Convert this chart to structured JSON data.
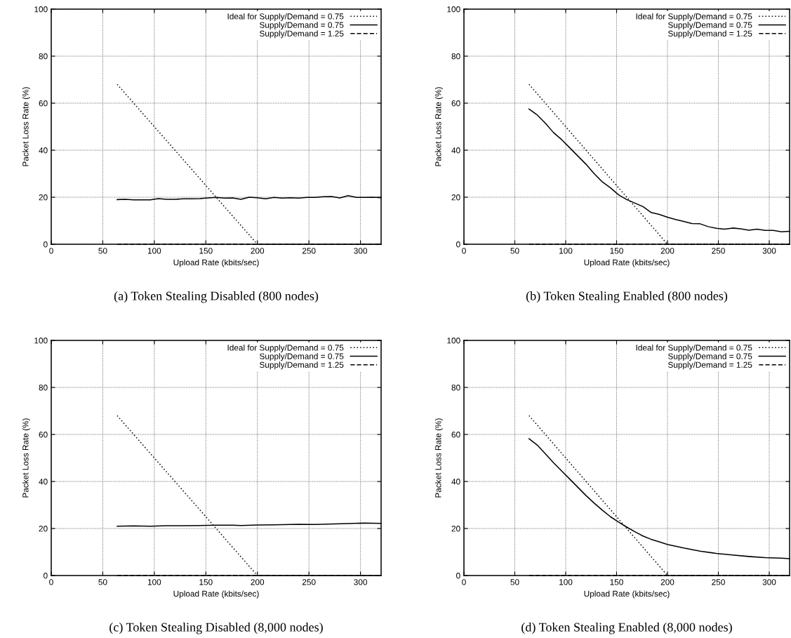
{
  "chart_data": [
    {
      "type": "line",
      "title": "(a) Token Stealing Disabled (800 nodes)",
      "xlabel": "Upload Rate (kbits/sec)",
      "ylabel": "Packet Loss Rate (%)",
      "xlim": [
        0,
        320
      ],
      "ylim": [
        0,
        100
      ],
      "xticks": [
        0,
        50,
        100,
        150,
        200,
        250,
        300
      ],
      "yticks": [
        0,
        20,
        40,
        60,
        80,
        100
      ],
      "grid": true,
      "legend": "top right",
      "series": [
        {
          "name": "Ideal for Supply/Demand = 0.75",
          "color": "#000000",
          "line_style": "dotted",
          "x": [
            64,
            200,
            320
          ],
          "values": [
            68,
            0,
            0
          ]
        },
        {
          "name": "Supply/Demand = 0.75",
          "color": "#000000",
          "line_style": "solid",
          "x": [
            64,
            72,
            80,
            88,
            96,
            104,
            112,
            120,
            128,
            136,
            144,
            152,
            160,
            168,
            176,
            184,
            192,
            200,
            208,
            216,
            224,
            232,
            240,
            248,
            256,
            264,
            272,
            280,
            288,
            296,
            304,
            312,
            320
          ],
          "values": [
            19.0,
            19.1,
            18.9,
            18.9,
            18.9,
            19.4,
            19.1,
            19.1,
            19.3,
            19.3,
            19.4,
            19.7,
            19.9,
            19.6,
            19.7,
            19.1,
            20.0,
            19.8,
            19.3,
            19.9,
            19.6,
            19.8,
            19.6,
            19.9,
            19.9,
            20.2,
            20.3,
            19.7,
            20.7,
            19.9,
            19.9,
            20.0,
            19.8
          ]
        },
        {
          "name": "Supply/Demand = 1.25",
          "color": "#000000",
          "line_style": "dashed",
          "x": [
            64,
            320
          ],
          "values": [
            0,
            0
          ]
        }
      ]
    },
    {
      "type": "line",
      "title": "(b) Token Stealing Enabled (800 nodes)",
      "xlabel": "Upload Rate (kbits/sec)",
      "ylabel": "Packet Loss Rate (%)",
      "xlim": [
        0,
        320
      ],
      "ylim": [
        0,
        100
      ],
      "xticks": [
        0,
        50,
        100,
        150,
        200,
        250,
        300
      ],
      "yticks": [
        0,
        20,
        40,
        60,
        80,
        100
      ],
      "grid": true,
      "legend": "top right",
      "series": [
        {
          "name": "Ideal for Supply/Demand = 0.75",
          "color": "#000000",
          "line_style": "dotted",
          "x": [
            64,
            200,
            320
          ],
          "values": [
            68,
            0,
            0
          ]
        },
        {
          "name": "Supply/Demand = 0.75",
          "color": "#000000",
          "line_style": "solid",
          "x": [
            64,
            72,
            80,
            88,
            96,
            104,
            112,
            120,
            128,
            136,
            144,
            152,
            160,
            168,
            176,
            184,
            192,
            200,
            208,
            216,
            224,
            232,
            240,
            248,
            256,
            264,
            272,
            280,
            288,
            296,
            304,
            312,
            320
          ],
          "values": [
            57.5,
            55,
            51.5,
            47.5,
            44.5,
            41,
            37.5,
            34,
            30,
            26.5,
            24,
            21,
            19,
            17.5,
            16,
            13.5,
            12.7,
            11.5,
            10.5,
            9.7,
            8.8,
            8.7,
            7.5,
            6.8,
            6.4,
            6.9,
            6.6,
            6.0,
            6.4,
            5.9,
            5.9,
            5.3,
            5.5
          ]
        },
        {
          "name": "Supply/Demand = 1.25",
          "color": "#000000",
          "line_style": "dashed",
          "x": [
            64,
            320
          ],
          "values": [
            0,
            0
          ]
        }
      ]
    },
    {
      "type": "line",
      "title": "(c) Token Stealing Disabled (8,000 nodes)",
      "xlabel": "Upload Rate (kbits/sec)",
      "ylabel": "Packet Loss Rate (%)",
      "xlim": [
        0,
        320
      ],
      "ylim": [
        0,
        100
      ],
      "xticks": [
        0,
        50,
        100,
        150,
        200,
        250,
        300
      ],
      "yticks": [
        0,
        20,
        40,
        60,
        80,
        100
      ],
      "grid": true,
      "legend": "top right",
      "series": [
        {
          "name": "Ideal for Supply/Demand = 0.75",
          "color": "#000000",
          "line_style": "dotted",
          "x": [
            64,
            200,
            320
          ],
          "values": [
            68,
            0,
            0
          ]
        },
        {
          "name": "Supply/Demand = 0.75",
          "color": "#000000",
          "line_style": "solid",
          "x": [
            64,
            80,
            96,
            112,
            128,
            144,
            160,
            176,
            184,
            200,
            216,
            240,
            256,
            280,
            304,
            320
          ],
          "values": [
            21.0,
            21.1,
            21.0,
            21.2,
            21.2,
            21.3,
            21.4,
            21.4,
            21.3,
            21.5,
            21.6,
            21.8,
            21.7,
            22.0,
            22.3,
            22.2
          ]
        },
        {
          "name": "Supply/Demand = 1.25",
          "color": "#000000",
          "line_style": "dashed",
          "x": [
            64,
            320
          ],
          "values": [
            0,
            0
          ]
        }
      ]
    },
    {
      "type": "line",
      "title": "(d) Token Stealing Enabled (8,000 nodes)",
      "xlabel": "Upload Rate (kbits/sec)",
      "ylabel": "Packet Loss Rate (%)",
      "xlim": [
        0,
        320
      ],
      "ylim": [
        0,
        100
      ],
      "xticks": [
        0,
        50,
        100,
        150,
        200,
        250,
        300
      ],
      "yticks": [
        0,
        20,
        40,
        60,
        80,
        100
      ],
      "grid": true,
      "legend": "top right",
      "series": [
        {
          "name": "Ideal for Supply/Demand = 0.75",
          "color": "#000000",
          "line_style": "dotted",
          "x": [
            64,
            200,
            320
          ],
          "values": [
            68,
            0,
            0
          ]
        },
        {
          "name": "Supply/Demand = 0.75",
          "color": "#000000",
          "line_style": "solid",
          "x": [
            64,
            72,
            80,
            88,
            96,
            104,
            112,
            120,
            128,
            136,
            144,
            152,
            160,
            168,
            176,
            184,
            192,
            200,
            216,
            232,
            248,
            264,
            280,
            296,
            312,
            320
          ],
          "values": [
            58.2,
            55.5,
            51.8,
            48,
            44.5,
            41,
            37.5,
            34,
            30.8,
            27.8,
            25,
            22.7,
            20.6,
            18.6,
            16.8,
            15.4,
            14.3,
            13.2,
            11.7,
            10.4,
            9.4,
            8.7,
            8.1,
            7.6,
            7.4,
            7.2
          ]
        },
        {
          "name": "Supply/Demand = 1.25",
          "color": "#000000",
          "line_style": "dashed",
          "x": [
            64,
            320
          ],
          "values": [
            0,
            0
          ]
        }
      ]
    }
  ]
}
